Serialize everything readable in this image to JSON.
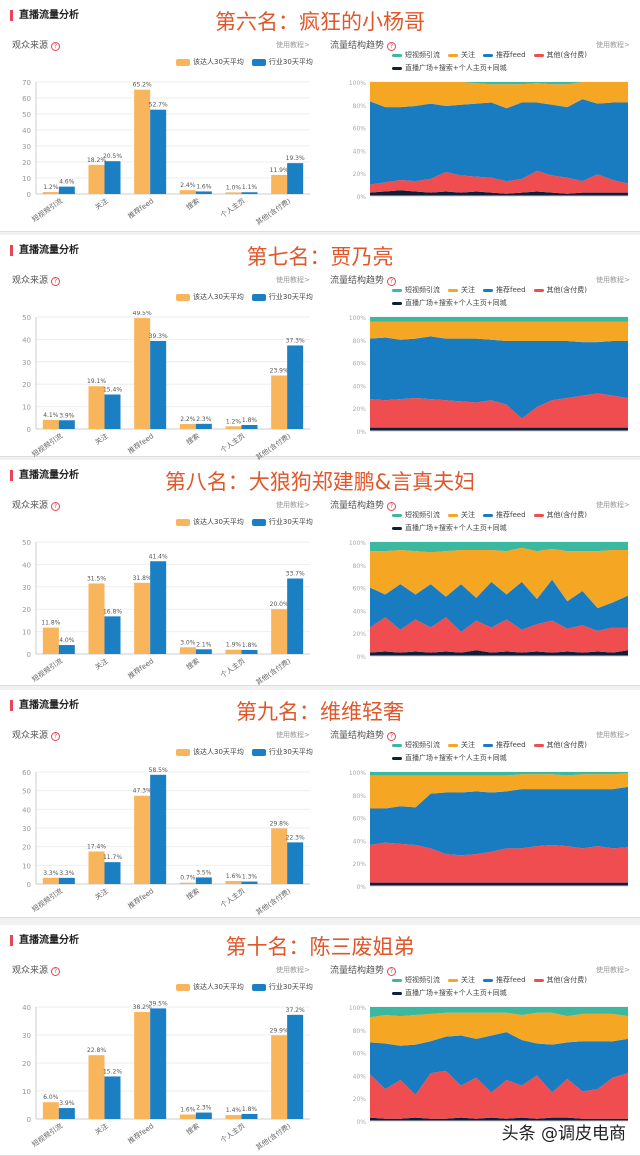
{
  "section_title": "直播流量分析",
  "audience_source": "观众来源",
  "traffic_trend": "流量结构趋势",
  "tutorial": "使用教程>",
  "bar_legend": [
    "该达人30天平均",
    "行业30天平均"
  ],
  "area_legend": [
    "短视频引流",
    "关注",
    "推荐feed",
    "其他(含付费)",
    "直播广场+搜索+个人主页+同城"
  ],
  "colors": {
    "orange": "#f8b55c",
    "blue": "#1b7fc4",
    "teal": "#3cb7a0",
    "yellow": "#f5a623",
    "areablue": "#1a7cc0",
    "red": "#ef4d4f",
    "dark": "#0e1f3b",
    "title": "#e0572b"
  },
  "footer": "头条 @调皮电商",
  "chart_data": [
    {
      "type": "bar",
      "title": "第六名：疯狂的小杨哥",
      "categories": [
        "短视频引流",
        "关注",
        "推荐feed",
        "搜索",
        "个人主页",
        "其他(含付费)"
      ],
      "ylim": [
        0,
        70
      ],
      "yticks": [
        0,
        10,
        20,
        30,
        40,
        50,
        60,
        70
      ],
      "series": [
        {
          "name": "该达人30天平均",
          "values": [
            1.2,
            18.2,
            65.2,
            2.4,
            1.0,
            11.9
          ],
          "labels": [
            "1.2%",
            "18.2%",
            "65.2%",
            "2.4%",
            "1.0%",
            "11.9%"
          ]
        },
        {
          "name": "行业30天平均",
          "values": [
            4.6,
            20.5,
            52.7,
            1.6,
            1.1,
            19.3
          ],
          "labels": [
            "4.6%",
            "20.5%",
            "52.7%",
            "1.6%",
            "1.1%",
            "19.3%"
          ]
        }
      ],
      "area": {
        "type": "area",
        "yticks": [
          "0%",
          "20%",
          "40%",
          "60%",
          "80%",
          "100%"
        ],
        "dark": [
          3,
          4,
          5,
          4,
          3,
          4,
          3,
          4,
          3,
          2,
          3,
          4,
          3,
          2,
          3,
          3,
          3,
          3
        ],
        "red": [
          7,
          8,
          9,
          9,
          12,
          17,
          15,
          13,
          13,
          11,
          12,
          18,
          15,
          14,
          10,
          16,
          11,
          8
        ],
        "blue": [
          73,
          66,
          64,
          66,
          66,
          58,
          62,
          64,
          66,
          64,
          67,
          60,
          62,
          62,
          72,
          62,
          68,
          71
        ],
        "yellow": [
          17,
          22,
          22,
          21,
          19,
          21,
          20,
          18,
          16,
          21,
          16,
          17,
          18,
          20,
          15,
          19,
          18,
          18
        ],
        "teal": [
          0,
          0,
          0,
          0,
          0,
          0,
          0,
          1,
          2,
          2,
          2,
          1,
          2,
          2,
          0,
          0,
          0,
          0
        ]
      }
    },
    {
      "type": "bar",
      "title": "第七名：贾乃亮",
      "categories": [
        "短视频引流",
        "关注",
        "推荐feed",
        "搜索",
        "个人主页",
        "其他(含付费)"
      ],
      "ylim": [
        0,
        50
      ],
      "yticks": [
        0,
        10,
        20,
        30,
        40,
        50
      ],
      "series": [
        {
          "name": "该达人30天平均",
          "values": [
            4.1,
            19.1,
            49.5,
            2.2,
            1.2,
            23.9
          ],
          "labels": [
            "4.1%",
            "19.1%",
            "49.5%",
            "2.2%",
            "1.2%",
            "23.9%"
          ]
        },
        {
          "name": "行业30天平均",
          "values": [
            3.9,
            15.4,
            39.3,
            2.3,
            1.8,
            37.3
          ],
          "labels": [
            "3.9%",
            "15.4%",
            "39.3%",
            "2.3%",
            "1.8%",
            "37.3%"
          ]
        }
      ],
      "area": {
        "type": "area",
        "yticks": [
          "0%",
          "20%",
          "40%",
          "60%",
          "80%",
          "100%"
        ],
        "dark": [
          3,
          3,
          3,
          3,
          3,
          3,
          3,
          3,
          3,
          3,
          3,
          3,
          3,
          3,
          3,
          3,
          3,
          3
        ],
        "red": [
          25,
          24,
          25,
          26,
          25,
          24,
          23,
          22,
          24,
          20,
          8,
          18,
          24,
          26,
          28,
          30,
          28,
          26
        ],
        "blue": [
          53,
          55,
          52,
          52,
          55,
          54,
          55,
          56,
          53,
          56,
          68,
          58,
          52,
          50,
          47,
          45,
          48,
          50
        ],
        "yellow": [
          15,
          14,
          16,
          15,
          13,
          15,
          15,
          15,
          16,
          17,
          17,
          17,
          17,
          17,
          18,
          18,
          17,
          17
        ],
        "teal": [
          4,
          4,
          4,
          4,
          4,
          4,
          4,
          4,
          4,
          4,
          4,
          4,
          4,
          4,
          4,
          4,
          4,
          4
        ]
      }
    },
    {
      "type": "bar",
      "title": "第八名：大狼狗郑建鹏&言真夫妇",
      "categories": [
        "短视频引流",
        "关注",
        "推荐feed",
        "搜索",
        "个人主页",
        "其他(含付费)"
      ],
      "ylim": [
        0,
        50
      ],
      "yticks": [
        0,
        10,
        20,
        30,
        40,
        50
      ],
      "series": [
        {
          "name": "该达人30天平均",
          "values": [
            11.8,
            31.5,
            31.8,
            3.0,
            1.9,
            20.0
          ],
          "labels": [
            "11.8%",
            "31.5%",
            "31.8%",
            "3.0%",
            "1.9%",
            "20.0%"
          ]
        },
        {
          "name": "行业30天平均",
          "values": [
            4.0,
            16.8,
            41.4,
            2.1,
            1.8,
            33.7
          ],
          "labels": [
            "4.0%",
            "16.8%",
            "41.4%",
            "2.1%",
            "1.8%",
            "33.7%"
          ]
        }
      ],
      "area": {
        "type": "area",
        "yticks": [
          "0%",
          "20%",
          "40%",
          "60%",
          "80%",
          "100%"
        ],
        "dark": [
          3,
          4,
          3,
          4,
          3,
          4,
          3,
          5,
          3,
          4,
          3,
          4,
          3,
          4,
          3,
          4,
          3,
          5
        ],
        "red": [
          22,
          30,
          20,
          28,
          22,
          30,
          18,
          26,
          22,
          28,
          20,
          24,
          28,
          20,
          24,
          18,
          22,
          20
        ],
        "blue": [
          35,
          20,
          40,
          22,
          38,
          18,
          42,
          20,
          40,
          22,
          42,
          22,
          36,
          24,
          30,
          20,
          22,
          28
        ],
        "yellow": [
          32,
          38,
          30,
          38,
          28,
          40,
          30,
          42,
          28,
          38,
          30,
          42,
          27,
          44,
          35,
          50,
          46,
          40
        ],
        "teal": [
          8,
          8,
          7,
          8,
          9,
          8,
          7,
          7,
          7,
          8,
          5,
          8,
          6,
          8,
          8,
          8,
          7,
          7
        ]
      }
    },
    {
      "type": "bar",
      "title": "第九名：维维轻奢",
      "categories": [
        "短视频引流",
        "关注",
        "推荐feed",
        "搜索",
        "个人主页",
        "其他(含付费)"
      ],
      "ylim": [
        0,
        60
      ],
      "yticks": [
        0,
        10,
        20,
        30,
        40,
        50,
        60
      ],
      "series": [
        {
          "name": "该达人30天平均",
          "values": [
            3.3,
            17.4,
            47.3,
            0.7,
            1.6,
            29.8
          ],
          "labels": [
            "3.3%",
            "17.4%",
            "47.3%",
            "0.7%",
            "1.6%",
            "29.8%"
          ]
        },
        {
          "name": "行业30天平均",
          "values": [
            3.3,
            11.7,
            58.5,
            3.5,
            1.3,
            22.3
          ],
          "labels": [
            "3.3%",
            "11.7%",
            "58.5%",
            "3.5%",
            "1.3%",
            "22.3%"
          ]
        }
      ],
      "area": {
        "type": "area",
        "yticks": [
          "0%",
          "20%",
          "40%",
          "60%",
          "80%",
          "100%"
        ],
        "dark": [
          3,
          3,
          3,
          3,
          3,
          3,
          3,
          3,
          3,
          3,
          3,
          3,
          3,
          3,
          3,
          3,
          3,
          3
        ],
        "red": [
          33,
          35,
          34,
          33,
          30,
          25,
          24,
          25,
          27,
          30,
          30,
          32,
          33,
          32,
          30,
          32,
          30,
          31
        ],
        "blue": [
          32,
          30,
          33,
          33,
          48,
          54,
          55,
          55,
          52,
          50,
          52,
          50,
          49,
          50,
          52,
          50,
          52,
          53
        ],
        "yellow": [
          29,
          29,
          27,
          28,
          16,
          15,
          15,
          14,
          15,
          14,
          13,
          13,
          13,
          12,
          13,
          13,
          13,
          12
        ],
        "teal": [
          3,
          3,
          3,
          3,
          3,
          3,
          3,
          3,
          3,
          3,
          2,
          2,
          2,
          3,
          2,
          2,
          2,
          1
        ]
      }
    },
    {
      "type": "bar",
      "title": "第十名：陈三废姐弟",
      "categories": [
        "短视频引流",
        "关注",
        "推荐feed",
        "搜索",
        "个人主页",
        "其他(含付费)"
      ],
      "ylim": [
        0,
        40
      ],
      "yticks": [
        0,
        10,
        20,
        30,
        40
      ],
      "series": [
        {
          "name": "该达人30天平均",
          "values": [
            6.0,
            22.8,
            38.2,
            1.6,
            1.4,
            29.9
          ],
          "labels": [
            "6.0%",
            "22.8%",
            "38.2%",
            "1.6%",
            "1.4%",
            "29.9%"
          ]
        },
        {
          "name": "行业30天平均",
          "values": [
            3.9,
            15.2,
            39.5,
            2.3,
            1.8,
            37.2
          ],
          "labels": [
            "3.9%",
            "15.2%",
            "39.5%",
            "2.3%",
            "1.8%",
            "37.2%"
          ]
        }
      ],
      "area": {
        "type": "area",
        "yticks": [
          "0%",
          "20%",
          "40%",
          "60%",
          "80%",
          "100%"
        ],
        "dark": [
          3,
          2,
          2,
          3,
          2,
          2,
          3,
          2,
          3,
          2,
          3,
          2,
          3,
          3,
          2,
          2,
          2,
          2
        ],
        "red": [
          38,
          26,
          34,
          20,
          40,
          42,
          28,
          36,
          22,
          34,
          28,
          38,
          22,
          34,
          24,
          26,
          36,
          40
        ],
        "blue": [
          28,
          40,
          30,
          44,
          28,
          30,
          44,
          34,
          50,
          42,
          40,
          28,
          42,
          32,
          44,
          42,
          32,
          30
        ],
        "yellow": [
          22,
          25,
          26,
          26,
          24,
          21,
          20,
          23,
          20,
          17,
          22,
          27,
          28,
          23,
          24,
          24,
          24,
          20
        ],
        "teal": [
          9,
          7,
          8,
          7,
          6,
          5,
          5,
          5,
          5,
          5,
          7,
          5,
          5,
          8,
          6,
          6,
          6,
          8
        ]
      }
    }
  ]
}
